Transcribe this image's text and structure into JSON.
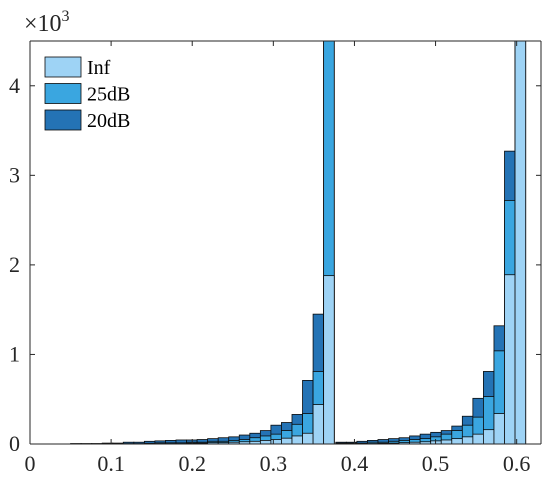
{
  "chart_data": {
    "type": "bar",
    "stacked": true,
    "multiplier_label": "×10",
    "multiplier_exponent": "3",
    "xlim": [
      0,
      0.63
    ],
    "ylim": [
      0,
      4.5
    ],
    "bin_width": 0.0131,
    "x_ticks": [
      "0",
      "0.1",
      "0.2",
      "0.3",
      "0.4",
      "0.5",
      "0.6"
    ],
    "y_ticks": [
      "0",
      "1",
      "2",
      "3",
      "4"
    ],
    "grid": false,
    "legend_position": "top-left",
    "colors": {
      "Inf": "#9ed3f5",
      "25dB": "#3aa6e0",
      "20dB": "#2473b5",
      "edge": "#0a0a0a"
    },
    "clusters": [
      {
        "bins_start": [
          0.05,
          0.063,
          0.076,
          0.089,
          0.102,
          0.115,
          0.128,
          0.141,
          0.154,
          0.167,
          0.18,
          0.193,
          0.206,
          0.219,
          0.232,
          0.245,
          0.258,
          0.271,
          0.284,
          0.297,
          0.31,
          0.323,
          0.336,
          0.349,
          0.362
        ],
        "Inf": [
          0.0,
          0.0,
          0.0,
          0.0,
          0.0,
          0.0,
          0.0,
          0.0,
          0.005,
          0.005,
          0.005,
          0.01,
          0.01,
          0.015,
          0.015,
          0.02,
          0.025,
          0.03,
          0.04,
          0.05,
          0.065,
          0.09,
          0.12,
          0.44,
          1.88
        ],
        "25dB": [
          0.002,
          0.002,
          0.003,
          0.004,
          0.004,
          0.004,
          0.004,
          0.008,
          0.013,
          0.013,
          0.013,
          0.02,
          0.02,
          0.03,
          0.03,
          0.04,
          0.05,
          0.07,
          0.09,
          0.11,
          0.15,
          0.22,
          0.34,
          0.81,
          4.55
        ],
        "20dB": [
          0.005,
          0.005,
          0.005,
          0.01,
          0.01,
          0.02,
          0.02,
          0.03,
          0.035,
          0.04,
          0.045,
          0.045,
          0.05,
          0.06,
          0.07,
          0.08,
          0.1,
          0.12,
          0.15,
          0.21,
          0.24,
          0.33,
          0.71,
          1.45,
          4.55
        ]
      },
      {
        "bins_start": [
          0.377,
          0.39,
          0.403,
          0.416,
          0.429,
          0.442,
          0.455,
          0.468,
          0.481,
          0.494,
          0.507,
          0.52,
          0.533,
          0.546,
          0.559,
          0.572,
          0.585,
          0.598
        ],
        "Inf": [
          0.0,
          0.0,
          0.003,
          0.005,
          0.008,
          0.01,
          0.015,
          0.02,
          0.025,
          0.035,
          0.045,
          0.06,
          0.08,
          0.11,
          0.16,
          0.34,
          1.89,
          4.55
        ],
        "25dB": [
          0.01,
          0.01,
          0.01,
          0.02,
          0.02,
          0.03,
          0.04,
          0.05,
          0.06,
          0.08,
          0.11,
          0.15,
          0.21,
          0.3,
          0.53,
          1.04,
          2.72,
          4.55
        ],
        "20dB": [
          0.02,
          0.02,
          0.03,
          0.04,
          0.05,
          0.06,
          0.07,
          0.09,
          0.11,
          0.13,
          0.15,
          0.2,
          0.31,
          0.51,
          0.81,
          1.32,
          3.27,
          4.55
        ]
      }
    ],
    "legend": [
      "Inf",
      "25dB",
      "20dB"
    ]
  }
}
